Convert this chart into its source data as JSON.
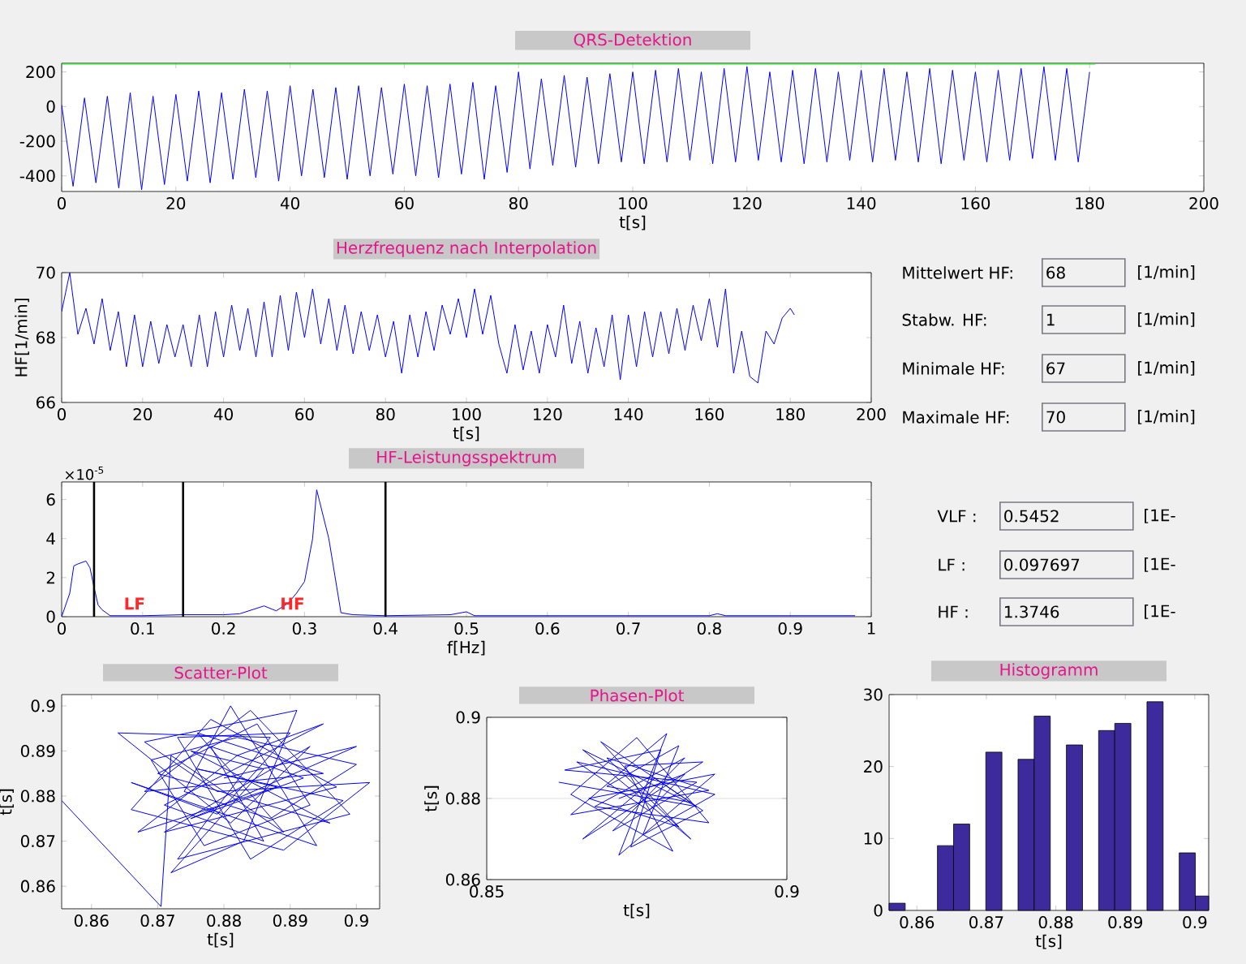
{
  "chart_data": [
    {
      "type": "line",
      "title": "QRS-Detektion",
      "xlabel": "t[s]",
      "xlim": [
        0,
        200
      ],
      "ylim": [
        -490,
        250
      ],
      "xticks": [
        0,
        20,
        40,
        60,
        80,
        100,
        120,
        140,
        160,
        180,
        200
      ],
      "yticks": [
        -400,
        -200,
        0,
        200
      ],
      "series": [
        {
          "color": "#0000ff",
          "x": [
            0,
            2,
            4,
            6,
            8,
            10,
            12,
            14,
            16,
            18,
            20,
            22,
            24,
            26,
            28,
            30,
            32,
            34,
            36,
            38,
            40,
            42,
            44,
            46,
            48,
            50,
            52,
            54,
            56,
            58,
            60,
            62,
            64,
            66,
            68,
            70,
            72,
            74,
            76,
            78,
            80,
            82,
            84,
            86,
            88,
            90,
            92,
            94,
            96,
            98,
            100,
            102,
            104,
            106,
            108,
            110,
            112,
            114,
            116,
            118,
            120,
            122,
            124,
            126,
            128,
            130,
            132,
            134,
            136,
            138,
            140,
            142,
            144,
            146,
            148,
            150,
            152,
            154,
            156,
            158,
            160,
            162,
            164,
            166,
            168,
            170,
            172,
            174,
            176,
            178,
            180
          ],
          "values": [
            10,
            -460,
            50,
            -440,
            60,
            -470,
            80,
            -480,
            60,
            -450,
            70,
            -430,
            90,
            -440,
            80,
            -420,
            100,
            -410,
            90,
            -430,
            120,
            -400,
            100,
            -410,
            110,
            -420,
            120,
            -400,
            110,
            -390,
            130,
            -400,
            120,
            -410,
            130,
            -390,
            140,
            -420,
            120,
            -380,
            200,
            -360,
            160,
            -340,
            180,
            -350,
            170,
            -330,
            190,
            -320,
            200,
            -330,
            210,
            -320,
            220,
            -310,
            200,
            -330,
            220,
            -320,
            230,
            -310,
            200,
            -320,
            210,
            -330,
            220,
            -320,
            200,
            -310,
            210,
            -320,
            220,
            -310,
            200,
            -320,
            220,
            -330,
            210,
            -310,
            200,
            -320,
            210,
            -310,
            220,
            -300,
            230,
            -310,
            220,
            -320,
            200
          ]
        },
        {
          "color": "#00ff00",
          "x": [
            0,
            181
          ],
          "values": [
            245,
            245
          ]
        }
      ]
    },
    {
      "type": "line",
      "title": "Herzfrequenz nach Interpolation",
      "xlabel": "t[s]",
      "ylabel": "HF[1/min]",
      "xlim": [
        0,
        200
      ],
      "ylim": [
        66,
        70
      ],
      "xticks": [
        0,
        20,
        40,
        60,
        80,
        100,
        120,
        140,
        160,
        180,
        200
      ],
      "yticks": [
        66,
        68,
        70
      ],
      "series": [
        {
          "color": "#0000ff",
          "x": [
            0,
            2,
            4,
            6,
            8,
            10,
            12,
            14,
            16,
            18,
            20,
            22,
            24,
            26,
            28,
            30,
            32,
            34,
            36,
            38,
            40,
            42,
            44,
            46,
            48,
            50,
            52,
            54,
            56,
            58,
            60,
            62,
            64,
            66,
            68,
            70,
            72,
            74,
            76,
            78,
            80,
            82,
            84,
            86,
            88,
            90,
            92,
            94,
            96,
            98,
            100,
            102,
            104,
            106,
            108,
            110,
            112,
            114,
            116,
            118,
            120,
            122,
            124,
            126,
            128,
            130,
            132,
            134,
            136,
            138,
            140,
            142,
            144,
            146,
            148,
            150,
            152,
            154,
            156,
            158,
            160,
            162,
            164,
            166,
            168,
            170,
            172,
            174,
            176,
            178,
            180,
            181
          ],
          "values": [
            68.8,
            70,
            68.1,
            68.9,
            67.8,
            69.2,
            67.6,
            68.8,
            67.1,
            68.7,
            67.1,
            68.5,
            67.2,
            68.4,
            67.4,
            68.4,
            67.1,
            68.7,
            67.1,
            68.8,
            67.4,
            69,
            67.6,
            68.9,
            67.4,
            69.1,
            67.4,
            69.3,
            67.6,
            69.4,
            68,
            69.5,
            67.8,
            69.2,
            67.6,
            69,
            67.5,
            68.8,
            67.6,
            68.7,
            67.4,
            68.5,
            66.9,
            68.7,
            67.4,
            68.8,
            67.6,
            69,
            68.1,
            69.2,
            68,
            69.5,
            68.1,
            69.3,
            67.8,
            66.9,
            68.4,
            67,
            68.2,
            66.9,
            68.4,
            67.4,
            69,
            67.2,
            68.5,
            66.9,
            68.3,
            67.1,
            68.7,
            66.7,
            68.7,
            67.1,
            68.8,
            67.4,
            68.8,
            67.5,
            68.9,
            67.6,
            69,
            67.9,
            69.2,
            67.7,
            69.5,
            66.9,
            68.2,
            66.8,
            66.6,
            68.2,
            67.8,
            68.6,
            68.9,
            68.7
          ]
        }
      ]
    },
    {
      "type": "line",
      "title": "HF-Leistungsspektrum",
      "xlabel": "f[Hz]",
      "xlim": [
        0,
        1
      ],
      "ylim": [
        0,
        6.9
      ],
      "xticks": [
        0,
        0.1,
        0.2,
        0.3,
        0.4,
        0.5,
        0.6,
        0.7,
        0.8,
        0.9,
        1
      ],
      "yticks": [
        0,
        2,
        4,
        6
      ],
      "annotations": [
        "×10$^{-5}$",
        {
          "text": "LF",
          "x": 0.09,
          "y": 0.35
        },
        {
          "text": "HF",
          "x": 0.285,
          "y": 0.35
        }
      ],
      "ref_lines": [
        {
          "axis": "x",
          "value": 0.04,
          "color": "#000000"
        },
        {
          "axis": "x",
          "value": 0.15,
          "color": "#000000"
        },
        {
          "axis": "x",
          "value": 0.4,
          "color": "#000000"
        }
      ],
      "series": [
        {
          "color": "#0000ff",
          "x": [
            0,
            0.01,
            0.015,
            0.02,
            0.03,
            0.035,
            0.04,
            0.045,
            0.05,
            0.06,
            0.1,
            0.15,
            0.2,
            0.22,
            0.25,
            0.265,
            0.28,
            0.29,
            0.3,
            0.31,
            0.315,
            0.33,
            0.345,
            0.36,
            0.4,
            0.48,
            0.5,
            0.51,
            0.8,
            0.81,
            0.82,
            0.98
          ],
          "values": [
            0,
            1.2,
            2.6,
            2.7,
            2.85,
            2.5,
            1.5,
            0.6,
            0.35,
            0.05,
            0.05,
            0.1,
            0.1,
            0.15,
            0.55,
            0.3,
            0.7,
            1.2,
            1.8,
            4,
            6.5,
            4,
            0.2,
            0.1,
            0.05,
            0.1,
            0.25,
            0.05,
            0.05,
            0.15,
            0.05,
            0.05
          ]
        }
      ]
    },
    {
      "type": "line",
      "title": "Scatter-Plot",
      "xlabel": "t[s]",
      "ylabel": "t[s]",
      "xlim": [
        0.8555,
        0.9035
      ],
      "ylim": [
        0.855,
        0.9025
      ],
      "xticks": [
        0.86,
        0.87,
        0.88,
        0.89,
        0.9
      ],
      "yticks": [
        0.86,
        0.87,
        0.88,
        0.89,
        0.9
      ],
      "series": [
        {
          "color": "#0000ff",
          "x": [
            0.8555,
            0.8705,
            0.872,
            0.889,
            0.876,
            0.895,
            0.868,
            0.884,
            0.899,
            0.873,
            0.887,
            0.864,
            0.881,
            0.893,
            0.871,
            0.897,
            0.878,
            0.866,
            0.889,
            0.902,
            0.879,
            0.868,
            0.891,
            0.883,
            0.872,
            0.886,
            0.875,
            0.896,
            0.87,
            0.885,
            0.893,
            0.877,
            0.869,
            0.882,
            0.9,
            0.887,
            0.874,
            0.881,
            0.894,
            0.866,
            0.879,
            0.89,
            0.873,
            0.884,
            0.898,
            0.876,
            0.888,
            0.867,
            0.882,
            0.895,
            0.871,
            0.886,
            0.878,
            0.892,
            0.875,
            0.9,
            0.88
          ],
          "values": [
            0.879,
            0.8555,
            0.889,
            0.872,
            0.894,
            0.885,
            0.881,
            0.899,
            0.876,
            0.866,
            0.893,
            0.894,
            0.874,
            0.891,
            0.872,
            0.882,
            0.897,
            0.877,
            0.868,
            0.883,
            0.881,
            0.892,
            0.899,
            0.87,
            0.863,
            0.886,
            0.89,
            0.874,
            0.885,
            0.896,
            0.878,
            0.869,
            0.888,
            0.893,
            0.887,
            0.875,
            0.881,
            0.9,
            0.869,
            0.883,
            0.876,
            0.894,
            0.893,
            0.866,
            0.879,
            0.886,
            0.882,
            0.872,
            0.889,
            0.896,
            0.878,
            0.87,
            0.891,
            0.884,
            0.875,
            0.891,
            0.884
          ]
        }
      ]
    },
    {
      "type": "line",
      "title": "Phasen-Plot",
      "xlabel": "t[s]",
      "ylabel": "t[s]",
      "xlim": [
        0.85,
        0.9
      ],
      "ylim": [
        0.86,
        0.9
      ],
      "xticks": [
        0.85,
        0.9
      ],
      "yticks": [
        0.86,
        0.88,
        0.9
      ],
      "grid": true,
      "series": [
        {
          "color": "#0000ff",
          "x": [
            0.862,
            0.885,
            0.866,
            0.884,
            0.87,
            0.887,
            0.864,
            0.88,
            0.872,
            0.888,
            0.867,
            0.882,
            0.869,
            0.886,
            0.874,
            0.879,
            0.863,
            0.885,
            0.871,
            0.883,
            0.868,
            0.887,
            0.875,
            0.864,
            0.881,
            0.873,
            0.886,
            0.866,
            0.878,
            0.884,
            0.87,
            0.882,
            0.876,
            0.888,
            0.865,
            0.877,
            0.883,
            0.872
          ],
          "values": [
            0.884,
            0.878,
            0.892,
            0.87,
            0.89,
            0.882,
            0.876,
            0.896,
            0.866,
            0.886,
            0.88,
            0.873,
            0.894,
            0.877,
            0.868,
            0.892,
            0.887,
            0.884,
            0.872,
            0.89,
            0.878,
            0.874,
            0.895,
            0.881,
            0.867,
            0.888,
            0.889,
            0.87,
            0.885,
            0.879,
            0.883,
            0.893,
            0.871,
            0.881,
            0.889,
            0.877,
            0.886,
            0.88
          ]
        }
      ]
    },
    {
      "type": "histogram",
      "title": "Histogramm",
      "xlabel": "t[s]",
      "xlim": [
        0.856,
        0.902
      ],
      "ylim": [
        0,
        30
      ],
      "xticks": [
        0.86,
        0.87,
        0.88,
        0.89,
        0.9
      ],
      "yticks": [
        0,
        10,
        20,
        30
      ],
      "color": "#3d2b9e",
      "bins": [
        0.856,
        0.85832,
        0.86296,
        0.86528,
        0.8676,
        0.86992,
        0.87224,
        0.87456,
        0.87688,
        0.8792,
        0.88152,
        0.88384,
        0.88616,
        0.88848,
        0.8908,
        0.89312,
        0.89544,
        0.89776,
        0.90008,
        0.902
      ],
      "values": [
        1,
        0,
        9,
        12,
        0,
        22,
        0,
        21,
        27,
        0,
        23,
        0,
        25,
        26,
        0,
        29,
        0,
        8,
        2
      ]
    },
    {
      "type": "other",
      "annotations": [
        "Mittelwert HF:",
        "68",
        "[1/min]",
        "Stabw. HF:",
        "1",
        "[1/min]",
        "Minimale HF:",
        "67",
        "[1/min]",
        "Maximale HF:",
        "70",
        "[1/min]",
        "VLF :",
        "0.5452",
        "[1E-",
        "LF :",
        "0.097697",
        "[1E-",
        "HF :",
        "1.3746",
        "[1E-"
      ]
    }
  ]
}
